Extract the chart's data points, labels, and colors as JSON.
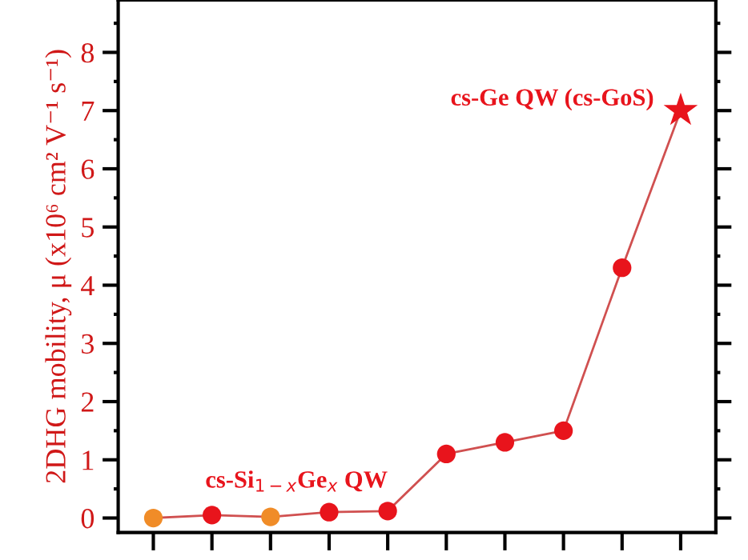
{
  "chart_data": {
    "type": "line",
    "ylabel": "2DHG mobility, μ (x10⁶ cm² V⁻¹ s⁻¹)",
    "categories": [
      null,
      null,
      null,
      null,
      null,
      null,
      null,
      null,
      null,
      null
    ],
    "ylim": [
      -0.25,
      8.9
    ],
    "yticks": [
      0,
      1,
      2,
      3,
      4,
      5,
      6,
      7,
      8
    ],
    "tick_labels": "y",
    "grid": false,
    "series": [
      {
        "color": "#d05050",
        "marker": "none",
        "line_style": "solid",
        "values": [
          0,
          0.05,
          0.02,
          0.1,
          0.12,
          1.1,
          1.3,
          1.5,
          4.3,
          7.0
        ]
      },
      {
        "type": "scatter",
        "color": "#f08c28",
        "marker": "circle",
        "values": [
          0,
          null,
          0.02,
          null,
          null,
          null,
          null,
          null,
          null,
          null
        ]
      },
      {
        "type": "scatter",
        "color": "#e8141c",
        "marker": "circle",
        "values": [
          null,
          0.05,
          null,
          0.1,
          0.12,
          1.1,
          1.3,
          1.5,
          4.3,
          null
        ]
      },
      {
        "type": "scatter",
        "color": "#e8141c",
        "marker": "star",
        "values": [
          null,
          null,
          null,
          null,
          null,
          null,
          null,
          null,
          null,
          7.0
        ]
      }
    ],
    "annotations": [
      "cs-Ge QW (cs-GoS)",
      "cs-Si$_{1−x}$Ge$_{x}$ QW"
    ]
  }
}
